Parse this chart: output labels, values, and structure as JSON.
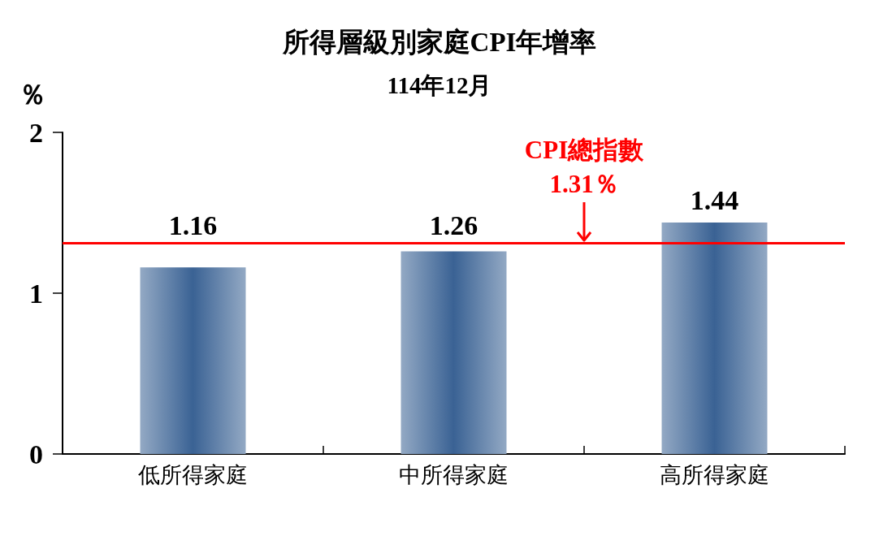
{
  "chart_data": {
    "type": "bar",
    "title": "所得層級別家庭CPI年增率",
    "subtitle": "114年12月",
    "ylabel": "％",
    "categories": [
      "低所得家庭",
      "中所得家庭",
      "高所得家庭"
    ],
    "values": [
      1.16,
      1.26,
      1.44
    ],
    "color": "#3a6294",
    "data_labels": true,
    "ylim": [
      0,
      2
    ],
    "yticks": [
      0,
      1,
      2
    ],
    "ref_lines": [
      {
        "axis": "y",
        "value": 1.31,
        "label": "CPI總指數\n1.31％",
        "color": "#ff0000"
      }
    ]
  }
}
